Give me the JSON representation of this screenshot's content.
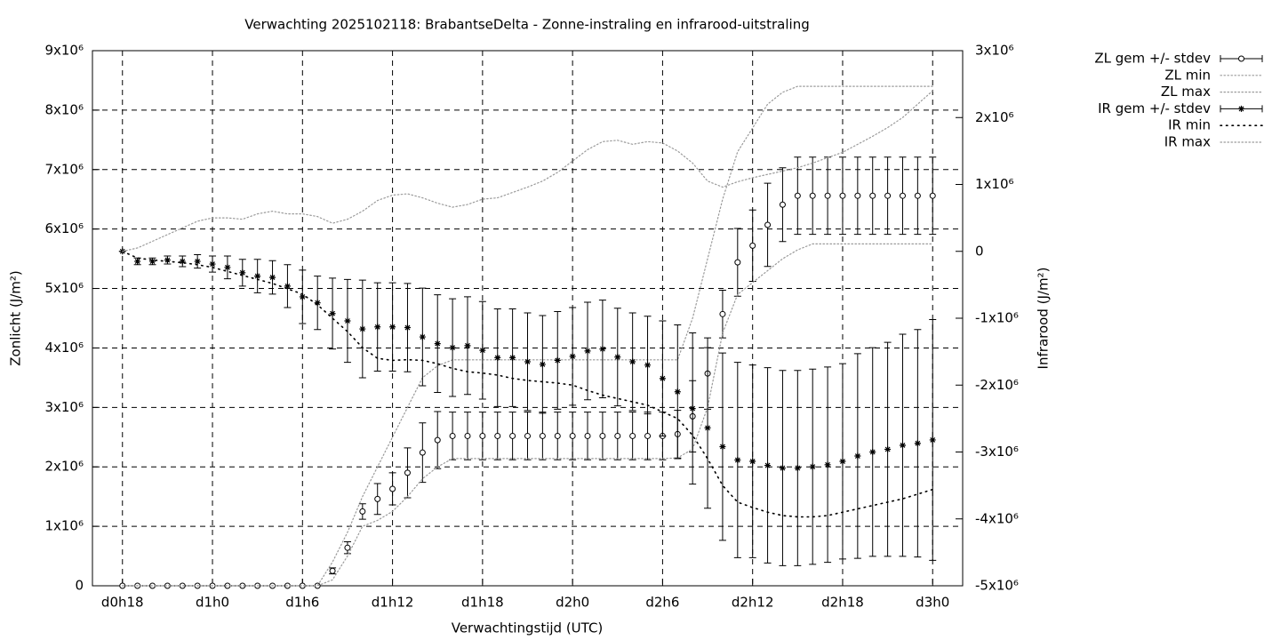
{
  "chart_data": {
    "type": "errorbar",
    "title": "Verwachting 2025102118: BrabantseDelta - Zonne-instraling en infrarood-uitstraling",
    "x_label": "Verwachtingstijd (UTC)",
    "y_label": "Zonlicht (J/m²)",
    "y2_label": "Infrarood (J/m²)",
    "grid": true,
    "legend": "outside-right",
    "xlim": [
      16,
      74
    ],
    "xticks": [
      {
        "value": 18,
        "label": "d0h18"
      },
      {
        "value": 24,
        "label": "d1h0"
      },
      {
        "value": 30,
        "label": "d1h6"
      },
      {
        "value": 36,
        "label": "d1h12"
      },
      {
        "value": 42,
        "label": "d1h18"
      },
      {
        "value": 48,
        "label": "d2h0"
      },
      {
        "value": 54,
        "label": "d2h6"
      },
      {
        "value": 60,
        "label": "d2h12"
      },
      {
        "value": 66,
        "label": "d2h18"
      },
      {
        "value": 72,
        "label": "d3h0"
      }
    ],
    "ylim": [
      0,
      9000000
    ],
    "yticks": [
      0,
      {
        "value": 1000000,
        "label": "1x10⁶"
      },
      {
        "value": 2000000,
        "label": "2x10⁶"
      },
      {
        "value": 3000000,
        "label": "3x10⁶"
      },
      {
        "value": 4000000,
        "label": "4x10⁶"
      },
      {
        "value": 5000000,
        "label": "5x10⁶"
      },
      {
        "value": 6000000,
        "label": "6x10⁶"
      },
      {
        "value": 7000000,
        "label": "7x10⁶"
      },
      {
        "value": 8000000,
        "label": "8x10⁶"
      },
      {
        "value": 9000000,
        "label": "9x10⁶"
      }
    ],
    "y2lim": [
      -5000000,
      3000000
    ],
    "y2ticks": [
      {
        "value": -5000000,
        "label": "-5x10⁶"
      },
      {
        "value": -4000000,
        "label": "-4x10⁶"
      },
      {
        "value": -3000000,
        "label": "-3x10⁶"
      },
      {
        "value": -2000000,
        "label": "-2x10⁶"
      },
      {
        "value": -1000000,
        "label": "-1x10⁶"
      },
      0,
      {
        "value": 1000000,
        "label": "1x10⁶"
      },
      {
        "value": 2000000,
        "label": "2x10⁶"
      },
      {
        "value": 3000000,
        "label": "3x10⁶"
      }
    ],
    "x": [
      18,
      19,
      20,
      21,
      22,
      23,
      24,
      25,
      26,
      27,
      28,
      29,
      30,
      31,
      32,
      33,
      34,
      35,
      36,
      37,
      38,
      39,
      40,
      41,
      42,
      43,
      44,
      45,
      46,
      47,
      48,
      49,
      50,
      51,
      52,
      53,
      54,
      55,
      56,
      57,
      58,
      59,
      60,
      61,
      62,
      63,
      64,
      65,
      66,
      67,
      68,
      69,
      70,
      71,
      72
    ],
    "series": [
      {
        "name": "ZL gem +/- stdev",
        "axis": "y",
        "style": "errorbar",
        "marker": "circle",
        "color": "#000000",
        "values": [
          0,
          0,
          0,
          0,
          0,
          0,
          0,
          0,
          0,
          0,
          0,
          0,
          0,
          0,
          250000,
          640000,
          1250000,
          1460000,
          1630000,
          1900000,
          2240000,
          2450000,
          2520000,
          2520000,
          2520000,
          2520000,
          2520000,
          2520000,
          2520000,
          2520000,
          2520000,
          2520000,
          2520000,
          2520000,
          2520000,
          2520000,
          2520000,
          2550000,
          2850000,
          3570000,
          4570000,
          5440000,
          5720000,
          6070000,
          6410000,
          6560000,
          6560000,
          6560000,
          6560000,
          6560000,
          6560000,
          6560000,
          6560000,
          6560000,
          6560000
        ],
        "errors": [
          0,
          0,
          0,
          0,
          0,
          0,
          0,
          0,
          0,
          0,
          0,
          0,
          0,
          0,
          50000,
          100000,
          130000,
          260000,
          270000,
          420000,
          500000,
          480000,
          400000,
          400000,
          400000,
          400000,
          400000,
          400000,
          400000,
          400000,
          400000,
          400000,
          400000,
          400000,
          400000,
          400000,
          400000,
          400000,
          600000,
          600000,
          400000,
          570000,
          600000,
          700000,
          620000,
          650000,
          650000,
          650000,
          650000,
          650000,
          650000,
          650000,
          650000,
          650000,
          650000
        ]
      },
      {
        "name": "ZL min",
        "axis": "y",
        "style": "dotted",
        "color": "#9a9a9a",
        "values": [
          0,
          0,
          0,
          0,
          0,
          0,
          0,
          0,
          0,
          0,
          0,
          0,
          0,
          0,
          100000,
          500000,
          1000000,
          1100000,
          1250000,
          1500000,
          1800000,
          2000000,
          2140000,
          2140000,
          2140000,
          2140000,
          2140000,
          2140000,
          2140000,
          2140000,
          2140000,
          2140000,
          2140000,
          2140000,
          2140000,
          2140000,
          2140000,
          2150000,
          2300000,
          3000000,
          4250000,
          4900000,
          5100000,
          5300000,
          5500000,
          5650000,
          5750000,
          5750000,
          5750000,
          5750000,
          5750000,
          5750000,
          5750000,
          5750000,
          5750000
        ]
      },
      {
        "name": "ZL max",
        "axis": "y",
        "style": "dotted",
        "color": "#9a9a9a",
        "values": [
          0,
          0,
          0,
          0,
          0,
          0,
          0,
          0,
          0,
          0,
          0,
          0,
          0,
          0,
          400000,
          900000,
          1500000,
          2000000,
          2500000,
          3000000,
          3500000,
          3700000,
          3800000,
          3800000,
          3800000,
          3800000,
          3800000,
          3800000,
          3800000,
          3800000,
          3800000,
          3800000,
          3800000,
          3800000,
          3800000,
          3800000,
          3800000,
          3800000,
          4500000,
          5500000,
          6500000,
          7300000,
          7700000,
          8100000,
          8300000,
          8400000,
          8400000,
          8400000,
          8400000,
          8400000,
          8400000,
          8400000,
          8400000,
          8400000,
          8400000
        ]
      },
      {
        "name": "IR gem +/- stdev",
        "axis": "y2",
        "style": "errorbar",
        "marker": "star",
        "color": "#000000",
        "values": [
          0,
          -150000,
          -150000,
          -130000,
          -150000,
          -150000,
          -190000,
          -240000,
          -320000,
          -370000,
          -390000,
          -520000,
          -680000,
          -770000,
          -930000,
          -1040000,
          -1160000,
          -1130000,
          -1130000,
          -1140000,
          -1280000,
          -1380000,
          -1440000,
          -1410000,
          -1480000,
          -1590000,
          -1590000,
          -1650000,
          -1690000,
          -1630000,
          -1570000,
          -1490000,
          -1460000,
          -1580000,
          -1650000,
          -1700000,
          -1900000,
          -2100000,
          -2350000,
          -2640000,
          -2920000,
          -3120000,
          -3140000,
          -3200000,
          -3240000,
          -3240000,
          -3220000,
          -3190000,
          -3140000,
          -3060000,
          -3000000,
          -2960000,
          -2900000,
          -2870000,
          -2820000
        ],
        "errors": [
          0,
          50000,
          50000,
          60000,
          80000,
          100000,
          120000,
          170000,
          200000,
          250000,
          250000,
          320000,
          400000,
          400000,
          530000,
          620000,
          730000,
          660000,
          660000,
          660000,
          730000,
          730000,
          730000,
          730000,
          730000,
          730000,
          730000,
          730000,
          730000,
          730000,
          730000,
          730000,
          730000,
          730000,
          730000,
          730000,
          860000,
          1000000,
          1130000,
          1200000,
          1400000,
          1460000,
          1440000,
          1460000,
          1460000,
          1460000,
          1460000,
          1460000,
          1460000,
          1530000,
          1560000,
          1600000,
          1660000,
          1700000,
          1800000
        ]
      },
      {
        "name": "IR min",
        "axis": "y2",
        "style": "dots",
        "color": "#000000",
        "values": [
          0,
          -100000,
          -130000,
          -150000,
          -170000,
          -200000,
          -240000,
          -300000,
          -360000,
          -420000,
          -480000,
          -560000,
          -640000,
          -800000,
          -1000000,
          -1200000,
          -1440000,
          -1600000,
          -1630000,
          -1620000,
          -1630000,
          -1680000,
          -1750000,
          -1800000,
          -1820000,
          -1850000,
          -1900000,
          -1930000,
          -1950000,
          -1970000,
          -2000000,
          -2080000,
          -2150000,
          -2200000,
          -2250000,
          -2300000,
          -2400000,
          -2500000,
          -2750000,
          -3100000,
          -3500000,
          -3750000,
          -3830000,
          -3900000,
          -3950000,
          -3970000,
          -3970000,
          -3950000,
          -3900000,
          -3850000,
          -3800000,
          -3750000,
          -3700000,
          -3630000,
          -3560000
        ]
      },
      {
        "name": "IR max",
        "axis": "y2",
        "style": "dotted",
        "color": "#9a9a9a",
        "values": [
          0,
          50000,
          150000,
          250000,
          350000,
          450000,
          500000,
          500000,
          480000,
          560000,
          600000,
          560000,
          560000,
          520000,
          420000,
          480000,
          600000,
          760000,
          840000,
          860000,
          800000,
          720000,
          660000,
          700000,
          780000,
          800000,
          880000,
          960000,
          1050000,
          1180000,
          1350000,
          1520000,
          1640000,
          1660000,
          1600000,
          1640000,
          1620000,
          1500000,
          1320000,
          1050000,
          960000,
          1040000,
          1100000,
          1150000,
          1200000,
          1250000,
          1320000,
          1400000,
          1480000,
          1600000,
          1720000,
          1850000,
          2000000,
          2200000,
          2400000
        ]
      }
    ]
  }
}
